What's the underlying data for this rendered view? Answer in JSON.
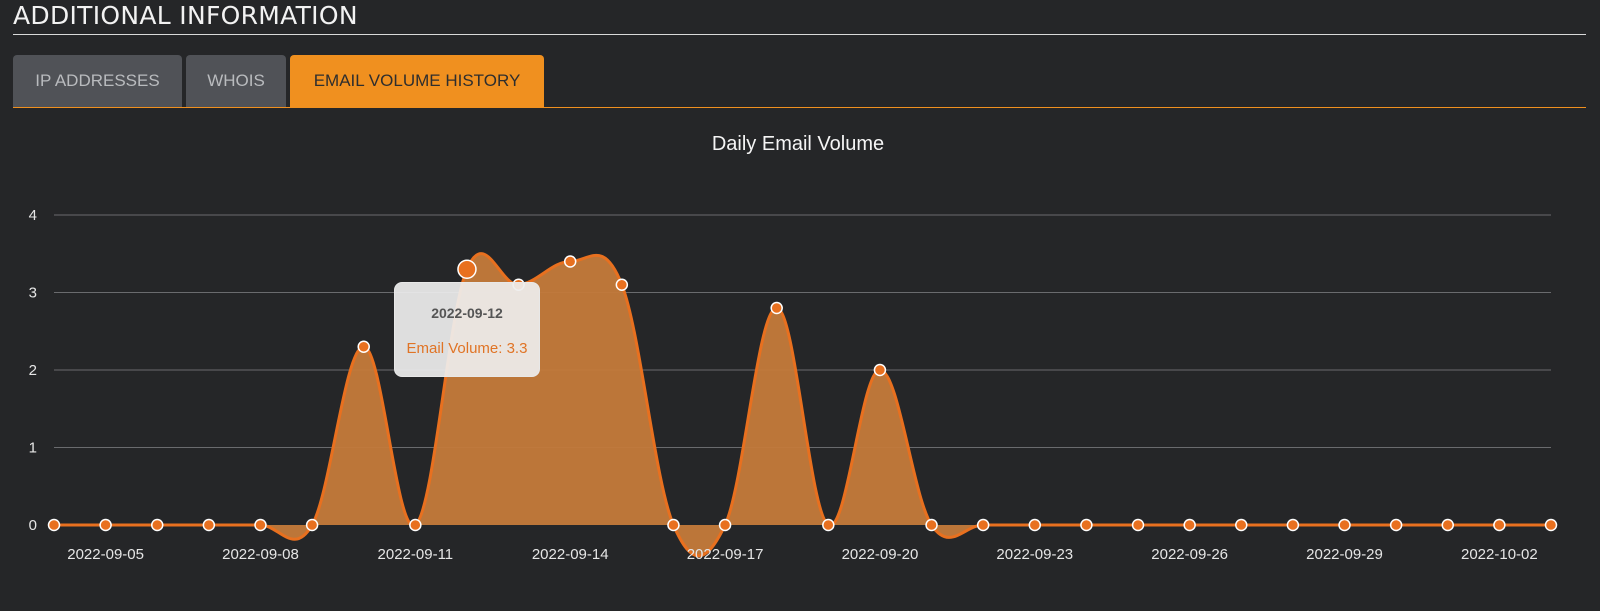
{
  "section": {
    "title": "ADDITIONAL INFORMATION"
  },
  "tabs": [
    {
      "label": "IP ADDRESSES",
      "active": false
    },
    {
      "label": "WHOIS",
      "active": false
    },
    {
      "label": "EMAIL VOLUME HISTORY",
      "active": true
    }
  ],
  "colors": {
    "accent": "#f0901f",
    "series_line": "#e8701f",
    "series_fill": "#c47a3a",
    "background": "#252628"
  },
  "tooltip": {
    "date": "2022-09-12",
    "label": "Email Volume: 3.3"
  },
  "chart_data": {
    "type": "area",
    "title": "Daily Email Volume",
    "xlabel": "",
    "ylabel": "",
    "ylim": [
      0,
      4
    ],
    "yticks": [
      "0",
      "1",
      "2",
      "3",
      "4"
    ],
    "grid": true,
    "legend": "none",
    "smooth": true,
    "x": [
      "2022-09-04",
      "2022-09-05",
      "2022-09-06",
      "2022-09-07",
      "2022-09-08",
      "2022-09-09",
      "2022-09-10",
      "2022-09-11",
      "2022-09-12",
      "2022-09-13",
      "2022-09-14",
      "2022-09-15",
      "2022-09-16",
      "2022-09-17",
      "2022-09-18",
      "2022-09-19",
      "2022-09-20",
      "2022-09-21",
      "2022-09-22",
      "2022-09-23",
      "2022-09-24",
      "2022-09-25",
      "2022-09-26",
      "2022-09-27",
      "2022-09-28",
      "2022-09-29",
      "2022-09-30",
      "2022-10-01",
      "2022-10-02",
      "2022-10-03"
    ],
    "xtick_labels": [
      "2022-09-05",
      "2022-09-08",
      "2022-09-11",
      "2022-09-14",
      "2022-09-17",
      "2022-09-20",
      "2022-09-23",
      "2022-09-26",
      "2022-09-29",
      "2022-10-02"
    ],
    "series": [
      {
        "values": [
          0,
          0,
          0,
          0,
          0,
          0,
          2.3,
          0,
          3.3,
          3.1,
          3.4,
          3.1,
          0,
          0,
          2.8,
          0,
          2,
          0,
          0,
          0,
          0,
          0,
          0,
          0,
          0,
          0,
          0,
          0,
          0,
          0
        ]
      }
    ],
    "highlighted_point": "2022-09-12"
  }
}
